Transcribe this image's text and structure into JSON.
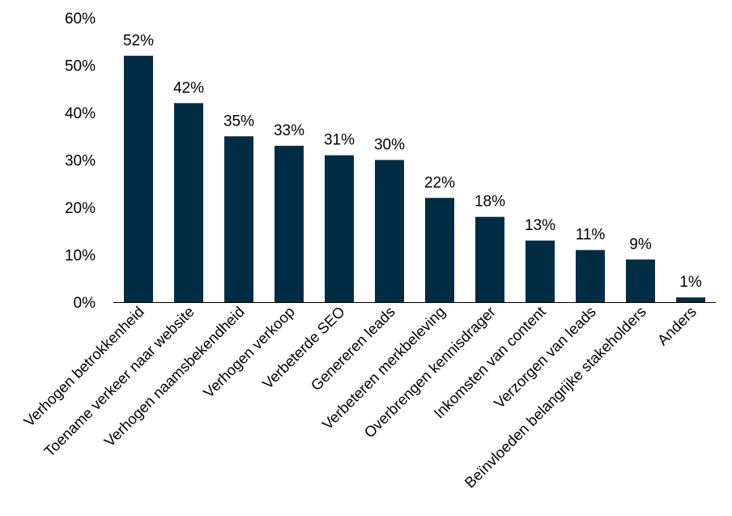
{
  "chart_data": {
    "type": "bar",
    "title": "",
    "xlabel": "",
    "ylabel": "",
    "ylim": [
      0,
      60
    ],
    "yticks": [
      "0%",
      "10%",
      "20%",
      "30%",
      "40%",
      "50%",
      "60%"
    ],
    "grid": false,
    "legend": "none",
    "bar_color": "#002d44",
    "categories": [
      "Verhogen betrokkenheid",
      "Toename verkeer naar website",
      "Verhogen naamsbekendheid",
      "Verhogen verkoop",
      "Verbeterde SEO",
      "Genereren leads",
      "Verbeteren merkbeleving",
      "Overbrengen kennisdrager",
      "Inkomsten van content",
      "Verzorgen van leads",
      "Beïnvloeden belangrijke stakeholders",
      "Anders"
    ],
    "values": [
      52,
      42,
      35,
      33,
      31,
      30,
      22,
      18,
      13,
      11,
      9,
      1
    ],
    "data_labels": [
      "52%",
      "42%",
      "35%",
      "33%",
      "31%",
      "30%",
      "22%",
      "18%",
      "13%",
      "11%",
      "9%",
      "1%"
    ]
  }
}
